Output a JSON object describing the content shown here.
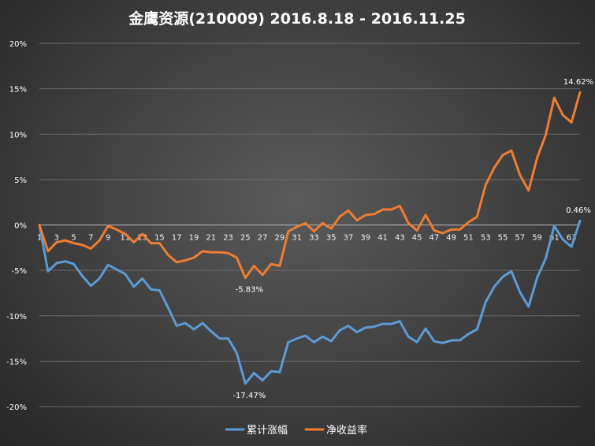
{
  "chart_data": {
    "type": "line",
    "title": "金鹰资源(210009)  2016.8.18 - 2016.11.25",
    "xlabel": "",
    "ylabel": "",
    "ylim": [
      -20,
      20
    ],
    "yticks": [
      "20%",
      "15%",
      "10%",
      "5%",
      "0%",
      "-5%",
      "-10%",
      "-15%",
      "-20%"
    ],
    "ytick_values": [
      20,
      15,
      10,
      5,
      0,
      -5,
      -10,
      -15,
      -20
    ],
    "x": [
      1,
      2,
      3,
      4,
      5,
      6,
      7,
      8,
      9,
      10,
      11,
      12,
      13,
      14,
      15,
      16,
      17,
      18,
      19,
      20,
      21,
      22,
      23,
      24,
      25,
      26,
      27,
      28,
      29,
      30,
      31,
      32,
      33,
      34,
      35,
      36,
      37,
      38,
      39,
      40,
      41,
      42,
      43,
      44,
      45,
      46,
      47,
      48,
      49,
      50,
      51,
      52,
      53,
      54,
      55,
      56,
      57,
      58,
      59,
      60,
      61,
      62,
      63,
      64
    ],
    "xtick_labels": [
      "1",
      "3",
      "5",
      "7",
      "9",
      "11",
      "13",
      "15",
      "17",
      "19",
      "21",
      "23",
      "25",
      "27",
      "29",
      "31",
      "33",
      "35",
      "37",
      "39",
      "41",
      "43",
      "45",
      "47",
      "49",
      "51",
      "53",
      "55",
      "57",
      "59",
      "61",
      "63"
    ],
    "xtick_values": [
      1,
      3,
      5,
      7,
      9,
      11,
      13,
      15,
      17,
      19,
      21,
      23,
      25,
      27,
      29,
      31,
      33,
      35,
      37,
      39,
      41,
      43,
      45,
      47,
      49,
      51,
      53,
      55,
      57,
      59,
      61,
      63
    ],
    "grid": true,
    "legend_position": "bottom",
    "series": [
      {
        "name": "累计涨幅",
        "color": "#5b9bd5",
        "values": [
          0.0,
          -5.1,
          -4.2,
          -4.0,
          -4.3,
          -5.6,
          -6.7,
          -5.9,
          -4.4,
          -4.9,
          -5.4,
          -6.8,
          -5.9,
          -7.1,
          -7.2,
          -9.1,
          -11.1,
          -10.8,
          -11.5,
          -10.8,
          -11.7,
          -12.5,
          -12.5,
          -14.1,
          -17.47,
          -16.3,
          -17.1,
          -16.1,
          -16.2,
          -12.9,
          -12.5,
          -12.2,
          -12.9,
          -12.3,
          -12.8,
          -11.6,
          -11.1,
          -11.8,
          -11.3,
          -11.2,
          -10.9,
          -10.9,
          -10.6,
          -12.3,
          -12.9,
          -11.4,
          -12.8,
          -13.0,
          -12.7,
          -12.7,
          -12.0,
          -11.5,
          -8.5,
          -6.8,
          -5.7,
          -5.1,
          -7.4,
          -9.0,
          -5.8,
          -3.7,
          -0.1,
          -1.6,
          -2.4,
          0.46
        ]
      },
      {
        "name": "净收益率",
        "color": "#ed7d31",
        "values": [
          0.0,
          -2.9,
          -1.9,
          -1.7,
          -2.0,
          -2.2,
          -2.6,
          -1.7,
          -0.1,
          -0.5,
          -1.0,
          -1.9,
          -1.0,
          -2.0,
          -2.0,
          -3.3,
          -4.1,
          -3.9,
          -3.6,
          -2.9,
          -3.0,
          -3.0,
          -3.1,
          -3.6,
          -5.83,
          -4.5,
          -5.5,
          -4.3,
          -4.5,
          -0.7,
          -0.2,
          0.2,
          -0.7,
          0.2,
          -0.4,
          0.9,
          1.6,
          0.5,
          1.1,
          1.2,
          1.7,
          1.7,
          2.1,
          0.2,
          -0.6,
          1.1,
          -0.6,
          -0.9,
          -0.5,
          -0.5,
          0.3,
          0.9,
          4.4,
          6.3,
          7.7,
          8.2,
          5.5,
          3.8,
          7.4,
          9.9,
          14.0,
          12.1,
          11.3,
          14.62
        ]
      }
    ],
    "annotations": [
      {
        "series": 1,
        "x": 25,
        "text": "-5.83%"
      },
      {
        "series": 0,
        "x": 25,
        "text": "-17.47%"
      },
      {
        "series": 1,
        "x": 64,
        "text": "14.62%"
      },
      {
        "series": 0,
        "x": 64,
        "text": "0.46%"
      }
    ]
  }
}
